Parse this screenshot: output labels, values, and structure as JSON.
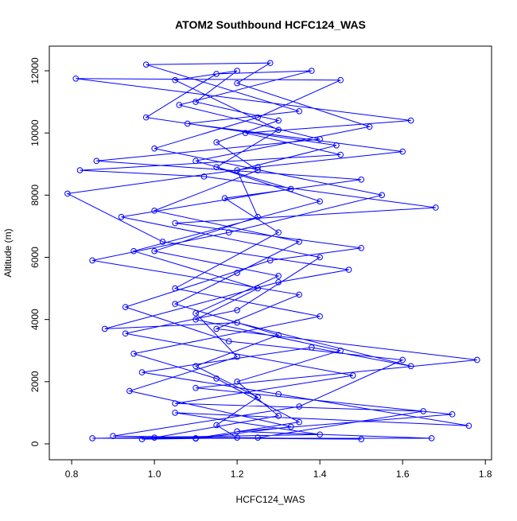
{
  "chart_data": {
    "type": "line",
    "markers": "open-circle",
    "title": "ATOM2 Southbound HCFC124_WAS",
    "x_label": "HCFC124_WAS",
    "y_label": "Altitude (m)",
    "color": "#0000ff",
    "x": [
      1.2,
      1.15,
      1.25,
      1.1,
      1.3,
      1.05,
      1.2,
      1.35,
      1.0,
      1.25,
      1.15,
      1.3,
      1.1,
      1.2,
      1.05,
      1.3,
      1.15,
      1.4,
      0.95,
      1.25,
      1.1,
      1.45,
      1.2,
      1.3,
      1.0,
      1.5,
      0.9,
      1.35,
      1.6,
      1.18,
      0.93,
      1.28,
      1.5,
      1.05,
      1.68,
      1.12,
      0.82,
      1.45,
      1.22,
      1.62,
      0.81,
      1.45,
      1.25,
      1.0,
      1.55,
      1.18,
      0.85,
      1.35,
      1.15,
      1.78,
      1.1,
      1.72,
      1.2,
      1.67,
      0.85,
      1.4,
      1.05,
      1.76,
      1.3,
      0.97,
      1.38,
      1.62,
      1.2,
      0.88,
      1.3,
      1.47,
      1.02,
      0.79,
      1.25,
      1.6,
      1.08,
      1.35,
      0.98,
      1.28,
      1.2,
      1.52,
      1.1,
      1.33,
      0.92,
      1.4,
      1.2,
      0.93,
      1.48,
      1.05,
      1.65,
      1.25,
      0.97,
      1.1,
      1.35,
      1.15,
      0.95,
      1.4,
      1.05,
      1.3,
      1.17,
      1.5,
      0.86,
      1.4,
      1.06,
      1.38,
      1.15,
      0.98,
      1.44,
      1.2,
      1.25,
      1.0,
      1.3,
      1.1,
      1.2,
      0.94,
      1.33,
      1.1
    ],
    "values": [
      200,
      600,
      1500,
      2500,
      3500,
      4500,
      5500,
      6500,
      7500,
      8800,
      9700,
      10400,
      11000,
      12000,
      11700,
      10100,
      8900,
      7800,
      6200,
      5000,
      4000,
      3000,
      2000,
      900,
      200,
      150,
      250,
      1200,
      2700,
      3300,
      4400,
      5900,
      6300,
      7100,
      7600,
      8600,
      8800,
      9300,
      10000,
      10400,
      11750,
      11700,
      10500,
      9500,
      8000,
      6800,
      5900,
      4800,
      3700,
      2700,
      1800,
      950,
      400,
      180,
      180,
      300,
      1000,
      580,
      1600,
      2300,
      3100,
      2500,
      3900,
      3700,
      5200,
      5600,
      6500,
      8050,
      8900,
      9400,
      10300,
      10700,
      12200,
      12250,
      11600,
      10200,
      9100,
      8200,
      7300,
      6000,
      4300,
      3550,
      2200,
      1300,
      1050,
      200,
      150,
      180,
      700,
      2100,
      2900,
      4100,
      5000,
      6800,
      7900,
      8500,
      9100,
      9800,
      10900,
      12000,
      11900,
      10500,
      9600,
      8800,
      7300,
      6200,
      5400,
      4200,
      2800,
      1700,
      550,
      170
    ],
    "xlim": [
      0.746,
      1.815
    ],
    "ylim": [
      -512,
      12793
    ],
    "xticks": [
      0.8,
      {
        "value": 1,
        "label": "1.0"
      },
      1.2,
      1.4,
      1.6,
      1.8
    ],
    "yticks": [
      0,
      2000,
      4000,
      6000,
      8000,
      10000,
      12000
    ]
  }
}
